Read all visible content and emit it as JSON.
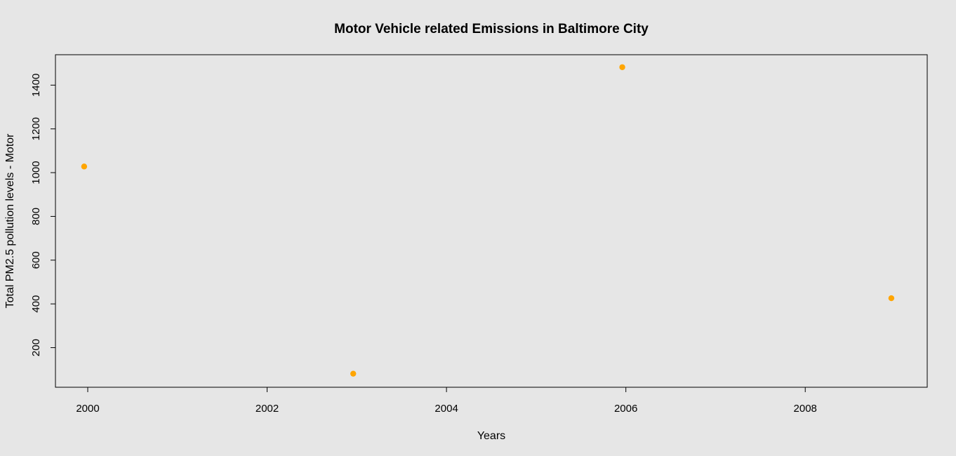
{
  "chart_data": {
    "type": "scatter",
    "title": "Motor Vehicle related Emissions in Baltimore City",
    "xlabel": "Years",
    "ylabel": "Total PM2.5 pollution levels - Motor",
    "x_ticks": [
      2000,
      2002,
      2004,
      2006,
      2008
    ],
    "y_ticks": [
      200,
      400,
      600,
      800,
      1000,
      1200,
      1400
    ],
    "xlim": [
      1999.64,
      2009.36
    ],
    "ylim": [
      19,
      1539
    ],
    "grid": false,
    "legend": "none",
    "point_color": "#ffa500",
    "background_color": "#e6e6e6",
    "series": [
      {
        "x": [
          1999,
          2002,
          2005,
          2008
        ],
        "x_display": [
          2000,
          2003,
          2006,
          2009
        ],
        "y": [
          1028,
          81,
          1482,
          426
        ]
      }
    ]
  }
}
